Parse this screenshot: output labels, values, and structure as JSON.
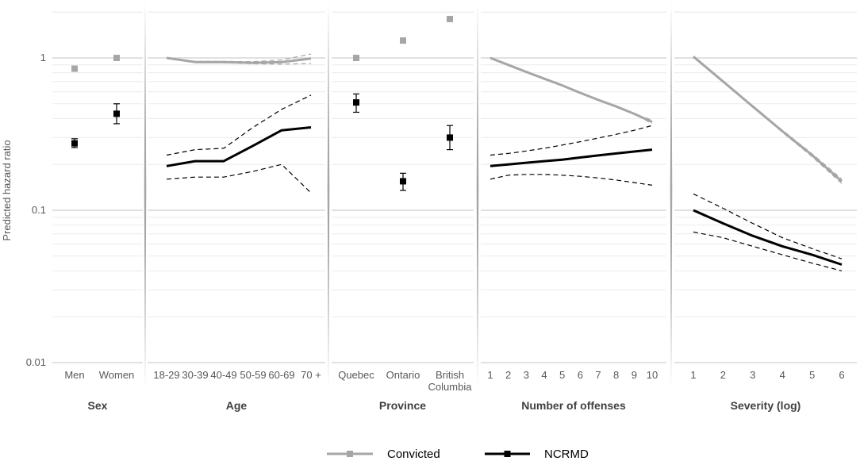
{
  "chart_data": {
    "type": "line",
    "y_axis": {
      "label": "Predicted hazard ratio",
      "scale": "log10",
      "ylim": [
        0.01,
        2.2
      ],
      "tick_values": [
        0.01,
        0.1,
        1
      ],
      "tick_labels": [
        "0.01",
        "0.1",
        "1"
      ],
      "grid": true
    },
    "legend": {
      "position": "bottom",
      "entries": [
        {
          "name": "Convicted",
          "color": "#a6a6a6"
        },
        {
          "name": "NCRMD",
          "color": "#000000"
        }
      ]
    },
    "colors": {
      "convicted": "#a6a6a6",
      "ncrmd": "#000000",
      "grid": "#d9d9d9",
      "separator": "#a6a6a6"
    },
    "panels": [
      {
        "title": "Sex",
        "kind": "categorical-points",
        "categories": [
          "Men",
          "Women"
        ],
        "series": [
          {
            "name": "Convicted",
            "values": [
              0.85,
              1.0
            ]
          },
          {
            "name": "NCRMD",
            "values": [
              0.275,
              0.43
            ],
            "ci_lower": [
              0.258,
              0.37
            ],
            "ci_upper": [
              0.295,
              0.5
            ]
          }
        ]
      },
      {
        "title": "Age",
        "kind": "categorical-lines",
        "categories": [
          "18-29",
          "30-39",
          "40-49",
          "50-59",
          "60-69",
          "70 +"
        ],
        "series": [
          {
            "name": "Convicted",
            "values": [
              1.0,
              0.94,
              0.94,
              0.93,
              0.94,
              0.99
            ],
            "ci_lower": [
              1.0,
              0.935,
              0.93,
              0.915,
              0.91,
              0.92
            ],
            "ci_upper": [
              1.0,
              0.95,
              0.95,
              0.945,
              0.97,
              1.06
            ]
          },
          {
            "name": "NCRMD",
            "values": [
              0.195,
              0.21,
              0.21,
              0.265,
              0.335,
              0.35
            ],
            "ci_lower": [
              0.16,
              0.165,
              0.165,
              0.18,
              0.2,
              0.13
            ],
            "ci_upper": [
              0.23,
              0.25,
              0.255,
              0.35,
              0.46,
              0.57
            ]
          }
        ]
      },
      {
        "title": "Province",
        "kind": "categorical-points",
        "categories": [
          "Quebec",
          "Ontario",
          "British\nColumbia"
        ],
        "series": [
          {
            "name": "Convicted",
            "values": [
              1.0,
              1.3,
              1.8
            ]
          },
          {
            "name": "NCRMD",
            "values": [
              0.51,
              0.155,
              0.3
            ],
            "ci_lower": [
              0.44,
              0.135,
              0.25
            ],
            "ci_upper": [
              0.58,
              0.175,
              0.36
            ]
          }
        ]
      },
      {
        "title": "Number of offenses",
        "kind": "continuous-lines",
        "x": [
          1,
          2,
          3,
          4,
          5,
          6,
          7,
          8,
          9,
          10
        ],
        "xlim": [
          1,
          10
        ],
        "series": [
          {
            "name": "Convicted",
            "values": [
              1.0,
              0.9,
              0.81,
              0.73,
              0.66,
              0.59,
              0.53,
              0.48,
              0.43,
              0.38
            ],
            "ci_lower": [
              1.0,
              0.9,
              0.81,
              0.73,
              0.66,
              0.59,
              0.53,
              0.48,
              0.43,
              0.37
            ],
            "ci_upper": [
              1.0,
              0.9,
              0.81,
              0.73,
              0.66,
              0.59,
              0.53,
              0.48,
              0.43,
              0.39
            ]
          },
          {
            "name": "NCRMD",
            "values": [
              0.195,
              0.2,
              0.205,
              0.21,
              0.215,
              0.222,
              0.229,
              0.236,
              0.243,
              0.25
            ],
            "ci_lower": [
              0.16,
              0.17,
              0.172,
              0.172,
              0.17,
              0.167,
              0.163,
              0.158,
              0.152,
              0.146
            ],
            "ci_upper": [
              0.23,
              0.236,
              0.245,
              0.255,
              0.268,
              0.282,
              0.298,
              0.315,
              0.335,
              0.36
            ]
          }
        ]
      },
      {
        "title": "Severity (log)",
        "kind": "continuous-lines",
        "x": [
          1,
          2,
          3,
          4,
          5,
          6
        ],
        "xlim": [
          1,
          6
        ],
        "series": [
          {
            "name": "Convicted",
            "values": [
              1.02,
              0.7,
              0.48,
              0.33,
              0.23,
              0.155
            ],
            "ci_lower": [
              1.02,
              0.695,
              0.475,
              0.325,
              0.225,
              0.15
            ],
            "ci_upper": [
              1.02,
              0.705,
              0.485,
              0.335,
              0.235,
              0.16
            ]
          },
          {
            "name": "NCRMD",
            "values": [
              0.1,
              0.082,
              0.068,
              0.058,
              0.051,
              0.044
            ],
            "ci_lower": [
              0.072,
              0.066,
              0.058,
              0.051,
              0.045,
              0.04
            ],
            "ci_upper": [
              0.128,
              0.103,
              0.082,
              0.066,
              0.056,
              0.048
            ]
          }
        ]
      }
    ]
  }
}
